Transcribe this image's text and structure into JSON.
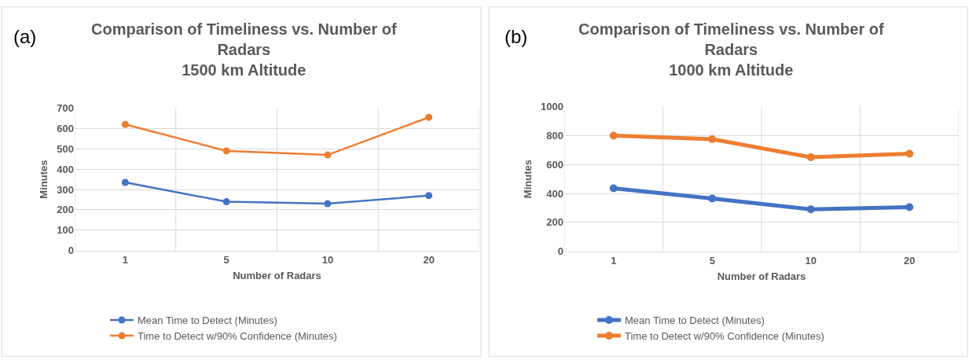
{
  "chart_data": [
    {
      "type": "line",
      "title": "Comparison of Timeliness vs. Number of Radars\n1500 km Altitude",
      "annotations": [
        "(a)"
      ],
      "xlabel": "Number of Radars",
      "ylabel": "Minutes",
      "categories": [
        "1",
        "5",
        "10",
        "20"
      ],
      "ylim": [
        0,
        700
      ],
      "yticks": [
        0,
        100,
        200,
        300,
        400,
        500,
        600,
        700
      ],
      "grid": true,
      "legend": "bottom",
      "marker": "circle",
      "series": [
        {
          "name": "Mean Time to Detect (Minutes)",
          "color": "#4472c4",
          "values": [
            335,
            240,
            230,
            270
          ]
        },
        {
          "name": "Time to Detect w/90% Confidence (Minutes)",
          "color": "#ed7d31",
          "values": [
            620,
            490,
            470,
            655
          ]
        }
      ]
    },
    {
      "type": "line",
      "title": "Comparison of Timeliness vs. Number of Radars\n1000 km Altitude",
      "annotations": [
        "(b)"
      ],
      "xlabel": "Number of Radars",
      "ylabel": "Minutes",
      "categories": [
        "1",
        "5",
        "10",
        "20"
      ],
      "ylim": [
        0,
        1000
      ],
      "yticks": [
        0,
        200,
        400,
        600,
        800,
        1000
      ],
      "grid": true,
      "legend": "bottom",
      "marker": "circle",
      "series": [
        {
          "name": "Mean Time to Detect (Minutes)",
          "color": "#4472c4",
          "values": [
            435,
            365,
            290,
            305
          ]
        },
        {
          "name": "Time to Detect w/90% Confidence (Minutes)",
          "color": "#ed7d31",
          "values": [
            800,
            775,
            650,
            675
          ]
        }
      ]
    }
  ]
}
